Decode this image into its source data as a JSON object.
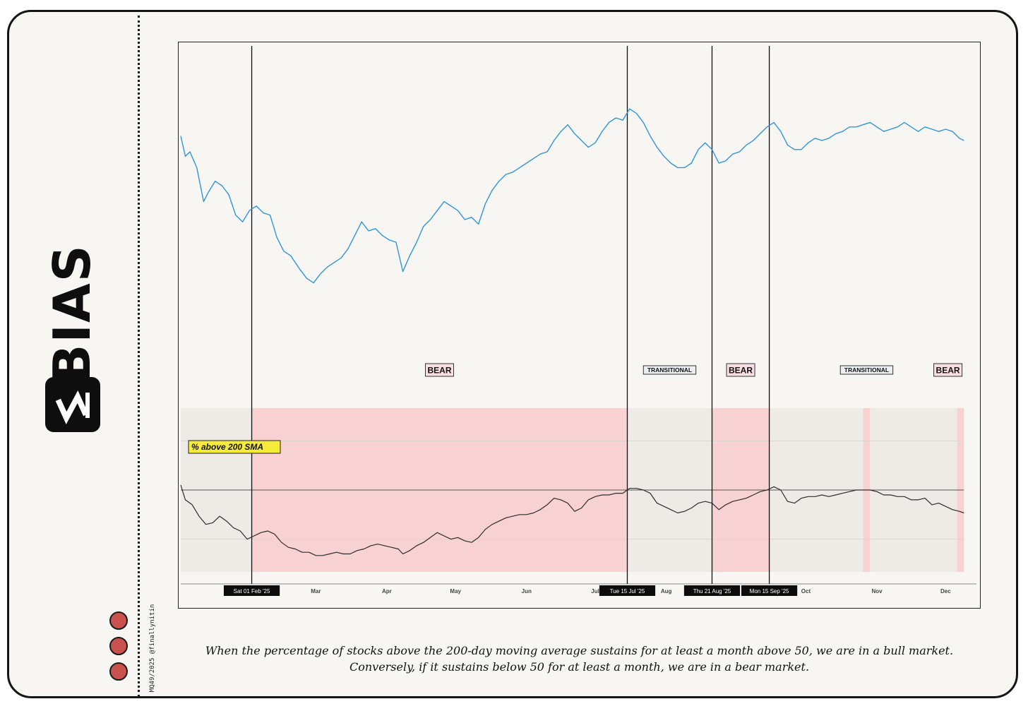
{
  "brand": {
    "name": "BIAS",
    "logo_icon": "bias-logo-icon"
  },
  "credit": "MQ49/2025 @finallynitin",
  "caption": "When the percentage of stocks above the 200-day moving average sustains for at least a month above 50, we are in a bull market. Conversely, if it sustains below 50 for at least a month, we are in a bear market.",
  "colors": {
    "price_line": "#2f95db",
    "breadth_line": "#2c2c2c",
    "bear_fill": "#f8d2d3",
    "transitional_fill": "#eeebe7",
    "bear_label_bg": "#f9dfe3",
    "transitional_label_bg": "#eceff1",
    "series_label_bg": "#f7eb3a",
    "decor_dots": "#c9524f"
  },
  "chart_data": {
    "type": "line",
    "x_start": "2025-01-01",
    "x_end": "2025-12-12",
    "x_ticks": [
      {
        "date": "2025-03-01",
        "label": "Mar"
      },
      {
        "date": "2025-04-01",
        "label": "Apr"
      },
      {
        "date": "2025-05-01",
        "label": "May"
      },
      {
        "date": "2025-06-01",
        "label": "Jun"
      },
      {
        "date": "2025-07-01",
        "label": "Jul"
      },
      {
        "date": "2025-08-01",
        "label": "Aug"
      },
      {
        "date": "2025-10-01",
        "label": "Oct"
      },
      {
        "date": "2025-11-01",
        "label": "Nov"
      },
      {
        "date": "2025-12-01",
        "label": "Dec"
      }
    ],
    "markers": [
      {
        "date": "2025-02-01",
        "label": "Sat 01 Feb '25"
      },
      {
        "date": "2025-07-15",
        "label": "Tue 15 Jul '25"
      },
      {
        "date": "2025-08-21",
        "label": "Thu 21 Aug '25"
      },
      {
        "date": "2025-09-15",
        "label": "Mon 15 Sep '25"
      }
    ],
    "regimes": [
      {
        "start": "2025-01-01",
        "end": "2025-02-01",
        "type": "transitional",
        "label": ""
      },
      {
        "start": "2025-02-01",
        "end": "2025-07-15",
        "type": "bear",
        "label": "BEAR"
      },
      {
        "start": "2025-07-15",
        "end": "2025-08-21",
        "type": "transitional",
        "label": "TRANSITIONAL"
      },
      {
        "start": "2025-08-21",
        "end": "2025-09-15",
        "type": "bear",
        "label": "BEAR"
      },
      {
        "start": "2025-09-15",
        "end": "2025-12-09",
        "type": "transitional",
        "label": "TRANSITIONAL"
      },
      {
        "start": "2025-10-26",
        "end": "2025-10-29",
        "type": "bear",
        "label": ""
      },
      {
        "start": "2025-12-06",
        "end": "2025-12-09",
        "type": "bear",
        "label": "BEAR"
      }
    ],
    "series": [
      {
        "key": "index",
        "name": "",
        "y_range": [
          0,
          100
        ],
        "points": [
          [
            "2025-01-01",
            82
          ],
          [
            "2025-01-03",
            73
          ],
          [
            "2025-01-05",
            75
          ],
          [
            "2025-01-08",
            68
          ],
          [
            "2025-01-11",
            53
          ],
          [
            "2025-01-13",
            57
          ],
          [
            "2025-01-16",
            62
          ],
          [
            "2025-01-19",
            60
          ],
          [
            "2025-01-22",
            56
          ],
          [
            "2025-01-25",
            47
          ],
          [
            "2025-01-28",
            44
          ],
          [
            "2025-01-31",
            49
          ],
          [
            "2025-02-03",
            51
          ],
          [
            "2025-02-06",
            48
          ],
          [
            "2025-02-09",
            47
          ],
          [
            "2025-02-12",
            37
          ],
          [
            "2025-02-15",
            31
          ],
          [
            "2025-02-18",
            29
          ],
          [
            "2025-02-22",
            23
          ],
          [
            "2025-02-25",
            19
          ],
          [
            "2025-02-28",
            17
          ],
          [
            "2025-03-03",
            21
          ],
          [
            "2025-03-06",
            24
          ],
          [
            "2025-03-09",
            26
          ],
          [
            "2025-03-12",
            28
          ],
          [
            "2025-03-15",
            32
          ],
          [
            "2025-03-18",
            38
          ],
          [
            "2025-03-21",
            44
          ],
          [
            "2025-03-24",
            40
          ],
          [
            "2025-03-27",
            41
          ],
          [
            "2025-03-30",
            38
          ],
          [
            "2025-04-02",
            36
          ],
          [
            "2025-04-05",
            35
          ],
          [
            "2025-04-08",
            22
          ],
          [
            "2025-04-11",
            29
          ],
          [
            "2025-04-14",
            35
          ],
          [
            "2025-04-17",
            42
          ],
          [
            "2025-04-20",
            45
          ],
          [
            "2025-04-23",
            49
          ],
          [
            "2025-04-26",
            53
          ],
          [
            "2025-04-29",
            51
          ],
          [
            "2025-05-02",
            49
          ],
          [
            "2025-05-05",
            45
          ],
          [
            "2025-05-08",
            46
          ],
          [
            "2025-05-11",
            43
          ],
          [
            "2025-05-14",
            52
          ],
          [
            "2025-05-17",
            58
          ],
          [
            "2025-05-20",
            62
          ],
          [
            "2025-05-23",
            65
          ],
          [
            "2025-05-26",
            66
          ],
          [
            "2025-05-29",
            68
          ],
          [
            "2025-06-01",
            70
          ],
          [
            "2025-06-04",
            72
          ],
          [
            "2025-06-07",
            74
          ],
          [
            "2025-06-10",
            75
          ],
          [
            "2025-06-13",
            80
          ],
          [
            "2025-06-16",
            84
          ],
          [
            "2025-06-19",
            87
          ],
          [
            "2025-06-22",
            83
          ],
          [
            "2025-06-25",
            80
          ],
          [
            "2025-06-28",
            77
          ],
          [
            "2025-07-01",
            79
          ],
          [
            "2025-07-04",
            84
          ],
          [
            "2025-07-07",
            88
          ],
          [
            "2025-07-10",
            90
          ],
          [
            "2025-07-13",
            89
          ],
          [
            "2025-07-16",
            94
          ],
          [
            "2025-07-19",
            92
          ],
          [
            "2025-07-22",
            88
          ],
          [
            "2025-07-25",
            82
          ],
          [
            "2025-07-28",
            77
          ],
          [
            "2025-07-31",
            73
          ],
          [
            "2025-08-03",
            70
          ],
          [
            "2025-08-06",
            68
          ],
          [
            "2025-08-09",
            68
          ],
          [
            "2025-08-12",
            70
          ],
          [
            "2025-08-15",
            76
          ],
          [
            "2025-08-18",
            79
          ],
          [
            "2025-08-21",
            76
          ],
          [
            "2025-08-24",
            70
          ],
          [
            "2025-08-27",
            71
          ],
          [
            "2025-08-30",
            74
          ],
          [
            "2025-09-02",
            75
          ],
          [
            "2025-09-05",
            78
          ],
          [
            "2025-09-08",
            80
          ],
          [
            "2025-09-11",
            83
          ],
          [
            "2025-09-14",
            86
          ],
          [
            "2025-09-17",
            88
          ],
          [
            "2025-09-20",
            84
          ],
          [
            "2025-09-23",
            78
          ],
          [
            "2025-09-26",
            76
          ],
          [
            "2025-09-29",
            76
          ],
          [
            "2025-10-02",
            79
          ],
          [
            "2025-10-05",
            81
          ],
          [
            "2025-10-08",
            80
          ],
          [
            "2025-10-11",
            81
          ],
          [
            "2025-10-14",
            83
          ],
          [
            "2025-10-17",
            84
          ],
          [
            "2025-10-20",
            86
          ],
          [
            "2025-10-23",
            86
          ],
          [
            "2025-10-26",
            87
          ],
          [
            "2025-10-29",
            88
          ],
          [
            "2025-11-01",
            86
          ],
          [
            "2025-11-04",
            84
          ],
          [
            "2025-11-07",
            85
          ],
          [
            "2025-11-10",
            86
          ],
          [
            "2025-11-13",
            88
          ],
          [
            "2025-11-16",
            86
          ],
          [
            "2025-11-19",
            84
          ],
          [
            "2025-11-22",
            86
          ],
          [
            "2025-11-25",
            85
          ],
          [
            "2025-11-28",
            84
          ],
          [
            "2025-12-01",
            85
          ],
          [
            "2025-12-04",
            84
          ],
          [
            "2025-12-07",
            81
          ],
          [
            "2025-12-09",
            80
          ]
        ]
      },
      {
        "key": "breadth",
        "name": "% above 200 SMA",
        "y_range": [
          0,
          100
        ],
        "reference_level": 50,
        "points": [
          [
            "2025-01-01",
            53
          ],
          [
            "2025-01-03",
            44
          ],
          [
            "2025-01-06",
            41
          ],
          [
            "2025-01-09",
            34
          ],
          [
            "2025-01-12",
            29
          ],
          [
            "2025-01-15",
            30
          ],
          [
            "2025-01-18",
            34
          ],
          [
            "2025-01-21",
            31
          ],
          [
            "2025-01-24",
            27
          ],
          [
            "2025-01-27",
            25
          ],
          [
            "2025-01-30",
            20
          ],
          [
            "2025-02-02",
            22
          ],
          [
            "2025-02-05",
            24
          ],
          [
            "2025-02-08",
            25
          ],
          [
            "2025-02-11",
            23
          ],
          [
            "2025-02-14",
            18
          ],
          [
            "2025-02-17",
            15
          ],
          [
            "2025-02-20",
            14
          ],
          [
            "2025-02-23",
            12
          ],
          [
            "2025-02-26",
            12
          ],
          [
            "2025-03-01",
            10
          ],
          [
            "2025-03-04",
            10
          ],
          [
            "2025-03-07",
            11
          ],
          [
            "2025-03-10",
            12
          ],
          [
            "2025-03-13",
            11
          ],
          [
            "2025-03-16",
            11
          ],
          [
            "2025-03-19",
            13
          ],
          [
            "2025-03-22",
            14
          ],
          [
            "2025-03-25",
            16
          ],
          [
            "2025-03-28",
            17
          ],
          [
            "2025-03-31",
            16
          ],
          [
            "2025-04-03",
            15
          ],
          [
            "2025-04-06",
            14
          ],
          [
            "2025-04-08",
            11
          ],
          [
            "2025-04-11",
            13
          ],
          [
            "2025-04-14",
            16
          ],
          [
            "2025-04-17",
            18
          ],
          [
            "2025-04-20",
            21
          ],
          [
            "2025-04-23",
            24
          ],
          [
            "2025-04-26",
            22
          ],
          [
            "2025-04-29",
            20
          ],
          [
            "2025-05-02",
            21
          ],
          [
            "2025-05-05",
            19
          ],
          [
            "2025-05-08",
            18
          ],
          [
            "2025-05-11",
            21
          ],
          [
            "2025-05-14",
            26
          ],
          [
            "2025-05-17",
            29
          ],
          [
            "2025-05-20",
            31
          ],
          [
            "2025-05-23",
            33
          ],
          [
            "2025-05-26",
            34
          ],
          [
            "2025-05-29",
            35
          ],
          [
            "2025-06-01",
            35
          ],
          [
            "2025-06-04",
            36
          ],
          [
            "2025-06-07",
            38
          ],
          [
            "2025-06-10",
            41
          ],
          [
            "2025-06-13",
            45
          ],
          [
            "2025-06-16",
            44
          ],
          [
            "2025-06-19",
            42
          ],
          [
            "2025-06-22",
            37
          ],
          [
            "2025-06-25",
            39
          ],
          [
            "2025-06-28",
            44
          ],
          [
            "2025-07-01",
            46
          ],
          [
            "2025-07-04",
            47
          ],
          [
            "2025-07-07",
            47
          ],
          [
            "2025-07-10",
            48
          ],
          [
            "2025-07-13",
            48
          ],
          [
            "2025-07-16",
            51
          ],
          [
            "2025-07-19",
            51
          ],
          [
            "2025-07-22",
            50
          ],
          [
            "2025-07-25",
            48
          ],
          [
            "2025-07-28",
            42
          ],
          [
            "2025-07-31",
            40
          ],
          [
            "2025-08-03",
            38
          ],
          [
            "2025-08-06",
            36
          ],
          [
            "2025-08-09",
            37
          ],
          [
            "2025-08-12",
            39
          ],
          [
            "2025-08-15",
            42
          ],
          [
            "2025-08-18",
            43
          ],
          [
            "2025-08-21",
            42
          ],
          [
            "2025-08-24",
            38
          ],
          [
            "2025-08-27",
            41
          ],
          [
            "2025-08-30",
            43
          ],
          [
            "2025-09-02",
            44
          ],
          [
            "2025-09-05",
            45
          ],
          [
            "2025-09-08",
            47
          ],
          [
            "2025-09-11",
            49
          ],
          [
            "2025-09-14",
            50
          ],
          [
            "2025-09-17",
            52
          ],
          [
            "2025-09-20",
            50
          ],
          [
            "2025-09-23",
            43
          ],
          [
            "2025-09-26",
            42
          ],
          [
            "2025-09-29",
            45
          ],
          [
            "2025-10-02",
            46
          ],
          [
            "2025-10-05",
            46
          ],
          [
            "2025-10-08",
            47
          ],
          [
            "2025-10-11",
            46
          ],
          [
            "2025-10-14",
            47
          ],
          [
            "2025-10-17",
            48
          ],
          [
            "2025-10-20",
            49
          ],
          [
            "2025-10-23",
            50
          ],
          [
            "2025-10-26",
            50
          ],
          [
            "2025-10-29",
            50
          ],
          [
            "2025-11-01",
            49
          ],
          [
            "2025-11-04",
            47
          ],
          [
            "2025-11-07",
            47
          ],
          [
            "2025-11-10",
            46
          ],
          [
            "2025-11-13",
            46
          ],
          [
            "2025-11-16",
            44
          ],
          [
            "2025-11-19",
            44
          ],
          [
            "2025-11-22",
            45
          ],
          [
            "2025-11-25",
            41
          ],
          [
            "2025-11-28",
            42
          ],
          [
            "2025-12-01",
            40
          ],
          [
            "2025-12-04",
            38
          ],
          [
            "2025-12-07",
            37
          ],
          [
            "2025-12-09",
            36
          ]
        ]
      }
    ]
  }
}
